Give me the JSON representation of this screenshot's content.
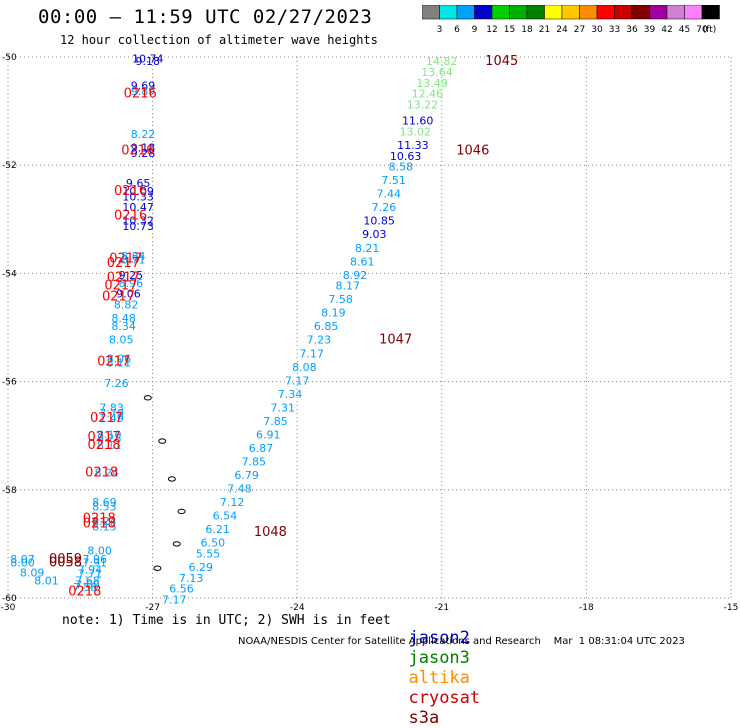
{
  "header": {
    "title": "00:00 – 11:59 UTC 02/27/2023",
    "subtitle": "12 hour collection of altimeter wave heights"
  },
  "colorbar": {
    "unit": "(ft)",
    "swatches": [
      {
        "color": "#808080",
        "label": "3"
      },
      {
        "color": "#00e5e5",
        "label": "6"
      },
      {
        "color": "#00a0ff",
        "label": "9"
      },
      {
        "color": "#0000cd",
        "label": "12"
      },
      {
        "color": "#00d000",
        "label": "15"
      },
      {
        "color": "#00b000",
        "label": "18"
      },
      {
        "color": "#008000",
        "label": "21"
      },
      {
        "color": "#ffff00",
        "label": "24"
      },
      {
        "color": "#ffc800",
        "label": "27"
      },
      {
        "color": "#ff8c00",
        "label": "30"
      },
      {
        "color": "#ff0000",
        "label": "33"
      },
      {
        "color": "#c80000",
        "label": "36"
      },
      {
        "color": "#800000",
        "label": "39"
      },
      {
        "color": "#a000a0",
        "label": "42"
      },
      {
        "color": "#d080d0",
        "label": "45"
      },
      {
        "color": "#ff80ff",
        "label": "70"
      },
      {
        "color": "#000000",
        "label": ""
      }
    ]
  },
  "map": {
    "lon_range": [
      -30,
      -15
    ],
    "lat_range": [
      -60,
      -50
    ],
    "lon_ticks": [
      -30,
      -27,
      -24,
      -21,
      -18,
      -15
    ],
    "lat_ticks": [
      -50,
      -52,
      -54,
      -56,
      -58,
      -60
    ],
    "grid": "dotted",
    "observations": [
      {
        "lon": -27.1,
        "lat": -50.1,
        "text": "10.74",
        "color": "#0000cd"
      },
      {
        "lon": -27.1,
        "lat": -50.15,
        "text": "9.18",
        "color": "#0000cd"
      },
      {
        "lon": -27.2,
        "lat": -50.6,
        "text": "9.69",
        "color": "#0000cd"
      },
      {
        "lon": -27.2,
        "lat": -50.7,
        "text": "9.89",
        "color": "#00a0ff"
      },
      {
        "lon": -27.2,
        "lat": -51.5,
        "text": "8.22",
        "color": "#00a0ff"
      },
      {
        "lon": -27.2,
        "lat": -51.75,
        "text": "9.18",
        "color": "#0000cd"
      },
      {
        "lon": -27.2,
        "lat": -51.85,
        "text": "9.28",
        "color": "#0000cd"
      },
      {
        "lon": -27.3,
        "lat": -52.4,
        "text": "9.65",
        "color": "#0000cd"
      },
      {
        "lon": -27.3,
        "lat": -52.55,
        "text": "10.09",
        "color": "#0000cd"
      },
      {
        "lon": -27.3,
        "lat": -52.65,
        "text": "10.33",
        "color": "#0000cd"
      },
      {
        "lon": -27.3,
        "lat": -52.85,
        "text": "10.47",
        "color": "#0000cd"
      },
      {
        "lon": -27.3,
        "lat": -53.1,
        "text": "10.32",
        "color": "#0000cd"
      },
      {
        "lon": -27.3,
        "lat": -53.2,
        "text": "10.73",
        "color": "#0000cd"
      },
      {
        "lon": -27.4,
        "lat": -53.75,
        "text": "8.84",
        "color": "#00a0ff"
      },
      {
        "lon": -27.4,
        "lat": -53.82,
        "text": "8.71",
        "color": "#00a0ff"
      },
      {
        "lon": -27.45,
        "lat": -54.1,
        "text": "9.25",
        "color": "#0000cd"
      },
      {
        "lon": -27.45,
        "lat": -54.25,
        "text": "8.96",
        "color": "#00a0ff"
      },
      {
        "lon": -27.5,
        "lat": -54.45,
        "text": "9.06",
        "color": "#0000cd"
      },
      {
        "lon": -27.55,
        "lat": -54.65,
        "text": "8.82",
        "color": "#00a0ff"
      },
      {
        "lon": -27.6,
        "lat": -54.9,
        "text": "8.48",
        "color": "#00a0ff"
      },
      {
        "lon": -27.6,
        "lat": -55.05,
        "text": "8.34",
        "color": "#00a0ff"
      },
      {
        "lon": -27.65,
        "lat": -55.3,
        "text": "8.05",
        "color": "#00a0ff"
      },
      {
        "lon": -27.7,
        "lat": -55.65,
        "text": "8.06",
        "color": "#00a0ff"
      },
      {
        "lon": -27.7,
        "lat": -55.72,
        "text": "8.11",
        "color": "#00a0ff"
      },
      {
        "lon": -27.75,
        "lat": -56.1,
        "text": "7.26",
        "color": "#00a0ff"
      },
      {
        "lon": -27.85,
        "lat": -56.55,
        "text": "7.83",
        "color": "#00a0ff"
      },
      {
        "lon": -27.85,
        "lat": -56.65,
        "text": "7.70",
        "color": "#00a0ff"
      },
      {
        "lon": -27.85,
        "lat": -56.75,
        "text": "7.49",
        "color": "#00a0ff"
      },
      {
        "lon": -27.9,
        "lat": -57.05,
        "text": "8.10",
        "color": "#00a0ff"
      },
      {
        "lon": -27.9,
        "lat": -57.12,
        "text": "8.28",
        "color": "#00a0ff"
      },
      {
        "lon": -27.9,
        "lat": -57.25,
        "text": "8.11",
        "color": "#00a0ff"
      },
      {
        "lon": -27.95,
        "lat": -57.75,
        "text": "8.24",
        "color": "#00a0ff"
      },
      {
        "lon": -28.0,
        "lat": -58.3,
        "text": "8.69",
        "color": "#00a0ff"
      },
      {
        "lon": -28.0,
        "lat": -58.38,
        "text": "8.53",
        "color": "#00a0ff"
      },
      {
        "lon": -28.0,
        "lat": -58.65,
        "text": "8.24",
        "color": "#00a0ff"
      },
      {
        "lon": -28.0,
        "lat": -58.75,
        "text": "8.15",
        "color": "#00a0ff"
      },
      {
        "lon": -28.1,
        "lat": -59.2,
        "text": "8.00",
        "color": "#00a0ff"
      },
      {
        "lon": -28.2,
        "lat": -59.35,
        "text": "7.96",
        "color": "#00a0ff"
      },
      {
        "lon": -28.2,
        "lat": -59.42,
        "text": "7.91",
        "color": "#00a0ff"
      },
      {
        "lon": -28.3,
        "lat": -59.55,
        "text": "7.94",
        "color": "#00a0ff"
      },
      {
        "lon": -28.3,
        "lat": -59.62,
        "text": "7.71",
        "color": "#00a0ff"
      },
      {
        "lon": -28.35,
        "lat": -59.75,
        "text": "7.68",
        "color": "#00a0ff"
      },
      {
        "lon": -28.35,
        "lat": -59.82,
        "text": "7.60",
        "color": "#00a0ff"
      },
      {
        "lon": -28.4,
        "lat": -59.87,
        "text": "7.58",
        "color": "#00a0ff"
      },
      {
        "lon": -29.7,
        "lat": -59.35,
        "text": "8.07",
        "color": "#00a0ff"
      },
      {
        "lon": -29.7,
        "lat": -59.42,
        "text": "8.00",
        "color": "#00a0ff"
      },
      {
        "lon": -29.5,
        "lat": -59.6,
        "text": "8.09",
        "color": "#00a0ff"
      },
      {
        "lon": -29.2,
        "lat": -59.75,
        "text": "8.01",
        "color": "#00a0ff"
      },
      {
        "lon": -21.0,
        "lat": -50.15,
        "text": "14.82",
        "color": "#80e880"
      },
      {
        "lon": -21.1,
        "lat": -50.35,
        "text": "13.64",
        "color": "#80e880"
      },
      {
        "lon": -21.2,
        "lat": -50.55,
        "text": "13.49",
        "color": "#80e880"
      },
      {
        "lon": -21.3,
        "lat": -50.75,
        "text": "12.46",
        "color": "#80e880"
      },
      {
        "lon": -21.4,
        "lat": -50.95,
        "text": "13.22",
        "color": "#80e880"
      },
      {
        "lon": -21.5,
        "lat": -51.25,
        "text": "11.60",
        "color": "#0000cd"
      },
      {
        "lon": -21.55,
        "lat": -51.45,
        "text": "13.02",
        "color": "#80e880"
      },
      {
        "lon": -21.6,
        "lat": -51.7,
        "text": "11.33",
        "color": "#0000cd"
      },
      {
        "lon": -21.75,
        "lat": -51.9,
        "text": "10.63",
        "color": "#0000cd"
      },
      {
        "lon": -21.85,
        "lat": -52.1,
        "text": "8.58",
        "color": "#00a0ff"
      },
      {
        "lon": -22.0,
        "lat": -52.35,
        "text": "7.51",
        "color": "#00a0ff"
      },
      {
        "lon": -22.1,
        "lat": -52.6,
        "text": "7.44",
        "color": "#00a0ff"
      },
      {
        "lon": -22.2,
        "lat": -52.85,
        "text": "7.26",
        "color": "#00a0ff"
      },
      {
        "lon": -22.3,
        "lat": -53.1,
        "text": "10.85",
        "color": "#0000cd"
      },
      {
        "lon": -22.4,
        "lat": -53.35,
        "text": "9.03",
        "color": "#0000cd"
      },
      {
        "lon": -22.55,
        "lat": -53.6,
        "text": "8.21",
        "color": "#00a0ff"
      },
      {
        "lon": -22.65,
        "lat": -53.85,
        "text": "8.61",
        "color": "#00a0ff"
      },
      {
        "lon": -22.8,
        "lat": -54.1,
        "text": "8.92",
        "color": "#00a0ff"
      },
      {
        "lon": -22.95,
        "lat": -54.3,
        "text": "8.17",
        "color": "#00a0ff"
      },
      {
        "lon": -23.1,
        "lat": -54.55,
        "text": "7.58",
        "color": "#00a0ff"
      },
      {
        "lon": -23.25,
        "lat": -54.8,
        "text": "8.19",
        "color": "#00a0ff"
      },
      {
        "lon": -23.4,
        "lat": -55.05,
        "text": "6.85",
        "color": "#00a0ff"
      },
      {
        "lon": -23.55,
        "lat": -55.3,
        "text": "7.23",
        "color": "#00a0ff"
      },
      {
        "lon": -23.7,
        "lat": -55.55,
        "text": "7.17",
        "color": "#00a0ff"
      },
      {
        "lon": -23.85,
        "lat": -55.8,
        "text": "8.08",
        "color": "#00a0ff"
      },
      {
        "lon": -24.0,
        "lat": -56.05,
        "text": "7.17",
        "color": "#00a0ff"
      },
      {
        "lon": -24.15,
        "lat": -56.3,
        "text": "7.34",
        "color": "#00a0ff"
      },
      {
        "lon": -24.3,
        "lat": -56.55,
        "text": "7.31",
        "color": "#00a0ff"
      },
      {
        "lon": -24.45,
        "lat": -56.8,
        "text": "7.85",
        "color": "#00a0ff"
      },
      {
        "lon": -24.6,
        "lat": -57.05,
        "text": "6.91",
        "color": "#00a0ff"
      },
      {
        "lon": -24.75,
        "lat": -57.3,
        "text": "6.87",
        "color": "#00a0ff"
      },
      {
        "lon": -24.9,
        "lat": -57.55,
        "text": "7.85",
        "color": "#00a0ff"
      },
      {
        "lon": -25.05,
        "lat": -57.8,
        "text": "6.79",
        "color": "#00a0ff"
      },
      {
        "lon": -25.2,
        "lat": -58.05,
        "text": "7.48",
        "color": "#00a0ff"
      },
      {
        "lon": -25.35,
        "lat": -58.3,
        "text": "7.12",
        "color": "#00a0ff"
      },
      {
        "lon": -25.5,
        "lat": -58.55,
        "text": "6.54",
        "color": "#00a0ff"
      },
      {
        "lon": -25.65,
        "lat": -58.8,
        "text": "6.21",
        "color": "#00a0ff"
      },
      {
        "lon": -25.75,
        "lat": -59.05,
        "text": "6.50",
        "color": "#00a0ff"
      },
      {
        "lon": -25.85,
        "lat": -59.25,
        "text": "5.55",
        "color": "#00a0ff"
      },
      {
        "lon": -26.0,
        "lat": -59.5,
        "text": "6.29",
        "color": "#00a0ff"
      },
      {
        "lon": -26.2,
        "lat": -59.7,
        "text": "7.13",
        "color": "#00a0ff"
      },
      {
        "lon": -26.4,
        "lat": -59.9,
        "text": "6.56",
        "color": "#00a0ff"
      },
      {
        "lon": -26.55,
        "lat": -60.1,
        "text": "7.17",
        "color": "#00a0ff"
      }
    ],
    "pass_labels": [
      {
        "lon": -27.6,
        "lat": -50.75,
        "text": "0216",
        "color": "#ff0000"
      },
      {
        "lon": -27.65,
        "lat": -51.8,
        "text": "0216",
        "color": "#ff0000"
      },
      {
        "lon": -27.8,
        "lat": -52.55,
        "text": "0216",
        "color": "#ff0000"
      },
      {
        "lon": -27.8,
        "lat": -53.0,
        "text": "0216",
        "color": "#ff0000"
      },
      {
        "lon": -27.9,
        "lat": -53.8,
        "text": "0217",
        "color": "#ff0000"
      },
      {
        "lon": -27.95,
        "lat": -53.88,
        "text": "0217",
        "color": "#ff0000"
      },
      {
        "lon": -27.95,
        "lat": -54.15,
        "text": "0217",
        "color": "#ff0000"
      },
      {
        "lon": -28.0,
        "lat": -54.3,
        "text": "0217",
        "color": "#ff0000"
      },
      {
        "lon": -28.05,
        "lat": -54.5,
        "text": "0217",
        "color": "#ff0000"
      },
      {
        "lon": -28.15,
        "lat": -55.7,
        "text": "0217",
        "color": "#ff0000"
      },
      {
        "lon": -28.3,
        "lat": -56.75,
        "text": "0217",
        "color": "#ff0000"
      },
      {
        "lon": -28.35,
        "lat": -57.1,
        "text": "0217",
        "color": "#ff0000"
      },
      {
        "lon": -28.35,
        "lat": -57.25,
        "text": "0218",
        "color": "#ff0000"
      },
      {
        "lon": -28.4,
        "lat": -57.75,
        "text": "0218",
        "color": "#ff0000"
      },
      {
        "lon": -28.45,
        "lat": -58.6,
        "text": "0218",
        "color": "#ff0000"
      },
      {
        "lon": -28.45,
        "lat": -58.7,
        "text": "0218",
        "color": "#ff0000"
      },
      {
        "lon": -29.15,
        "lat": -59.35,
        "text": "0059",
        "color": "#800000"
      },
      {
        "lon": -29.15,
        "lat": -59.42,
        "text": "0058",
        "color": "#800000"
      },
      {
        "lon": -28.75,
        "lat": -59.95,
        "text": "0218",
        "color": "#ff0000"
      },
      {
        "lon": -20.1,
        "lat": -50.15,
        "text": "1045",
        "color": "#800000"
      },
      {
        "lon": -20.7,
        "lat": -51.8,
        "text": "1046",
        "color": "#800000"
      },
      {
        "lon": -22.3,
        "lat": -55.3,
        "text": "1047",
        "color": "#800000"
      },
      {
        "lon": -24.9,
        "lat": -58.85,
        "text": "1048",
        "color": "#800000"
      }
    ]
  },
  "footer": {
    "note": "note: 1) Time is in UTC; 2) SWH is in feet",
    "satellites": [
      {
        "name": "jason2",
        "color": "#0000cd"
      },
      {
        "name": "jason3",
        "color": "#008000"
      },
      {
        "name": "altika",
        "color": "#ff8c00"
      },
      {
        "name": "cryosat",
        "color": "#c80000"
      },
      {
        "name": "s3a",
        "color": "#800000"
      }
    ],
    "credit": "NOAA/NESDIS Center for Satellite Applications and Research    Mar  1 08:31:04 UTC 2023"
  }
}
